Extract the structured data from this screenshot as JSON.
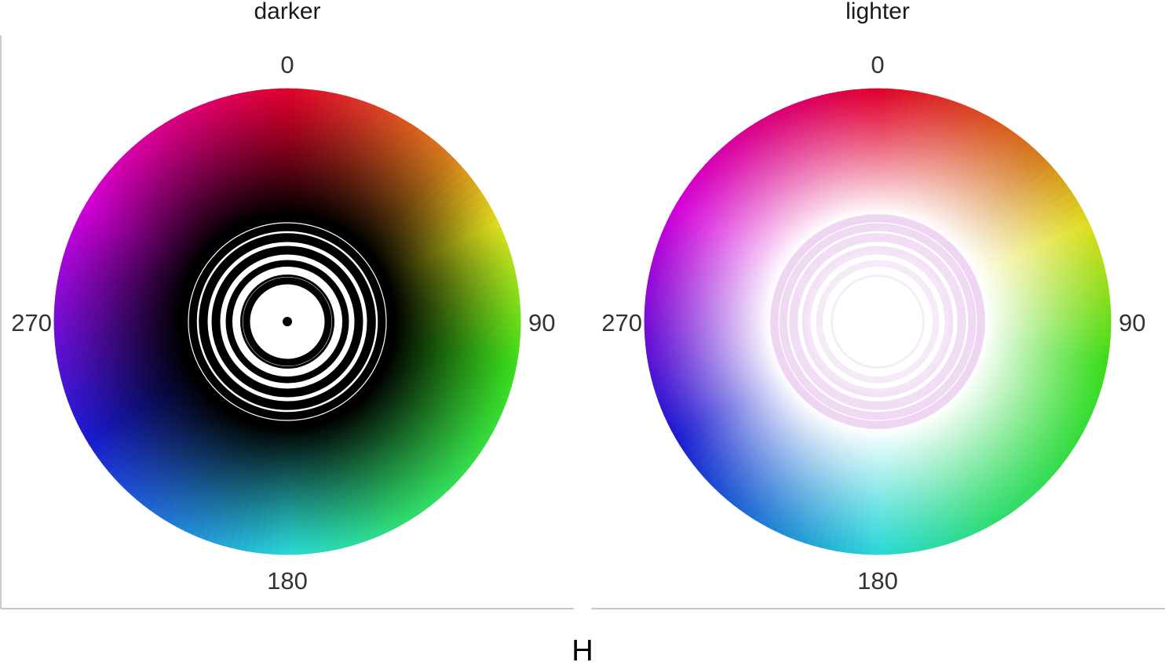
{
  "chart_data": {
    "type": "polar-scatter",
    "x_axis_title": "H",
    "angular_ticks": [
      "0",
      "90",
      "180",
      "270"
    ],
    "angular_tick_values": [
      0,
      90,
      180,
      270
    ],
    "panels": [
      {
        "title": "darker",
        "center_color": "#000000",
        "description_values": {
          "hue_start": 0,
          "hue_end": 360,
          "lightness_trend": "toward black at center"
        }
      },
      {
        "title": "lighter",
        "center_color": "#ffffff",
        "description_values": {
          "hue_start": 0,
          "hue_end": 360,
          "lightness_trend": "toward white at center"
        }
      }
    ],
    "hue_anchor_colors": [
      {
        "hue": 0,
        "color": "#e0002b"
      },
      {
        "hue": 45,
        "color": "#d4801c"
      },
      {
        "hue": 65,
        "color": "#dede1e"
      },
      {
        "hue": 100,
        "color": "#3bdc1a"
      },
      {
        "hue": 150,
        "color": "#2fdc70"
      },
      {
        "hue": 180,
        "color": "#2ad8d8"
      },
      {
        "hue": 240,
        "color": "#1a1ad0"
      },
      {
        "hue": 300,
        "color": "#d400d8"
      },
      {
        "hue": 360,
        "color": "#e0002b"
      }
    ],
    "grid": false
  }
}
